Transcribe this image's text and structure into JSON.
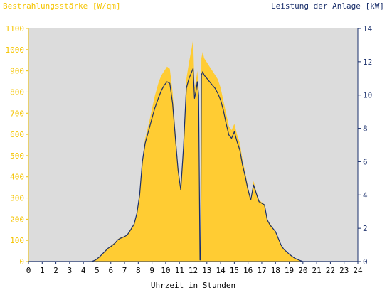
{
  "chart_data": {
    "type": "area",
    "left_axis_title": "Bestrahlungsstärke [W/qm]",
    "right_axis_title": "Leistung der Anlage [kW]",
    "xlabel": "Uhrzeit in Stunden",
    "xlim": [
      0,
      24
    ],
    "ylim_left": [
      0,
      1100
    ],
    "ylim_right": [
      0,
      14
    ],
    "x_ticks": [
      "0",
      "1",
      "2",
      "3",
      "4",
      "5",
      "6",
      "7",
      "8",
      "9",
      "10",
      "11",
      "12",
      "13",
      "14",
      "15",
      "16",
      "17",
      "18",
      "19",
      "20",
      "21",
      "22",
      "23",
      "24"
    ],
    "y_left_ticks": [
      "0",
      "100",
      "200",
      "300",
      "400",
      "500",
      "600",
      "700",
      "800",
      "900",
      "1000",
      "1100"
    ],
    "y_right_ticks": [
      "0",
      "2",
      "4",
      "6",
      "8",
      "10",
      "12",
      "14"
    ],
    "colors": {
      "plot_background": "#dcdcdc",
      "irradiance_fill": "#ffcc33",
      "power_line": "#1a2f6b",
      "left_axis": "#f5c400",
      "right_axis": "#1a2f6b",
      "axis_text": "#000000"
    },
    "series": [
      {
        "name": "Bestrahlungsstärke [W/qm]",
        "axis": "left",
        "style": "filled-area",
        "x": [
          0,
          4.6,
          4.9,
          5.2,
          5.5,
          5.8,
          6.0,
          6.3,
          6.5,
          6.7,
          7.0,
          7.2,
          7.4,
          7.7,
          7.9,
          8.1,
          8.3,
          8.5,
          8.8,
          9.0,
          9.2,
          9.5,
          9.7,
          9.9,
          10.1,
          10.3,
          10.5,
          10.7,
          10.9,
          11.1,
          11.3,
          11.5,
          11.7,
          11.9,
          12.0,
          12.1,
          12.2,
          12.3,
          12.4,
          12.5,
          12.55,
          12.6,
          12.7,
          12.8,
          13.0,
          13.2,
          13.4,
          13.6,
          13.8,
          14.0,
          14.2,
          14.4,
          14.6,
          14.8,
          15.0,
          15.2,
          15.4,
          15.6,
          15.8,
          16.0,
          16.2,
          16.4,
          16.6,
          16.8,
          17.0,
          17.2,
          17.4,
          17.6,
          17.8,
          18.0,
          18.2,
          18.4,
          18.6,
          18.8,
          19.0,
          19.2,
          19.4,
          19.6,
          19.8,
          20.0,
          20.2,
          24
        ],
        "values": [
          0,
          0,
          10,
          25,
          45,
          65,
          75,
          90,
          105,
          115,
          120,
          130,
          150,
          180,
          230,
          320,
          480,
          580,
          660,
          720,
          780,
          850,
          880,
          900,
          920,
          910,
          800,
          620,
          450,
          350,
          560,
          860,
          940,
          1010,
          1050,
          820,
          850,
          900,
          820,
          20,
          20,
          960,
          990,
          960,
          940,
          920,
          900,
          880,
          860,
          820,
          760,
          700,
          640,
          620,
          650,
          600,
          560,
          480,
          420,
          350,
          300,
          380,
          330,
          290,
          280,
          270,
          200,
          180,
          160,
          140,
          110,
          80,
          60,
          45,
          35,
          25,
          15,
          10,
          5,
          0,
          0,
          0
        ]
      },
      {
        "name": "Leistung der Anlage [kW]",
        "axis": "right",
        "style": "line",
        "x": [
          0,
          4.6,
          4.9,
          5.2,
          5.5,
          5.8,
          6.0,
          6.3,
          6.5,
          6.7,
          7.0,
          7.2,
          7.4,
          7.7,
          7.9,
          8.1,
          8.3,
          8.5,
          8.8,
          9.0,
          9.2,
          9.5,
          9.7,
          9.9,
          10.1,
          10.3,
          10.5,
          10.7,
          10.9,
          11.1,
          11.3,
          11.5,
          11.7,
          11.9,
          12.0,
          12.1,
          12.2,
          12.3,
          12.4,
          12.5,
          12.55,
          12.6,
          12.7,
          12.8,
          13.0,
          13.2,
          13.4,
          13.6,
          13.8,
          14.0,
          14.2,
          14.4,
          14.6,
          14.8,
          15.0,
          15.2,
          15.4,
          15.6,
          15.8,
          16.0,
          16.2,
          16.4,
          16.6,
          16.8,
          17.0,
          17.2,
          17.4,
          17.6,
          17.8,
          18.0,
          18.2,
          18.4,
          18.6,
          18.8,
          19.0,
          19.2,
          19.4,
          19.6,
          19.8,
          20.0,
          20.2,
          24
        ],
        "values": [
          0,
          0,
          0.1,
          0.3,
          0.55,
          0.8,
          0.9,
          1.1,
          1.3,
          1.4,
          1.5,
          1.6,
          1.85,
          2.25,
          2.9,
          4.0,
          6.0,
          7.1,
          8.0,
          8.6,
          9.2,
          9.9,
          10.3,
          10.6,
          10.8,
          10.7,
          9.5,
          7.5,
          5.5,
          4.3,
          6.9,
          10.4,
          11.0,
          11.4,
          11.6,
          9.8,
          10.2,
          10.8,
          10.0,
          0.1,
          0.1,
          11.2,
          11.4,
          11.2,
          11.0,
          10.8,
          10.6,
          10.4,
          10.1,
          9.7,
          9.1,
          8.3,
          7.6,
          7.4,
          7.8,
          7.2,
          6.7,
          5.8,
          5.1,
          4.3,
          3.7,
          4.6,
          4.1,
          3.6,
          3.5,
          3.4,
          2.5,
          2.2,
          2.0,
          1.8,
          1.4,
          1.0,
          0.75,
          0.6,
          0.45,
          0.32,
          0.2,
          0.13,
          0.06,
          0,
          0,
          0
        ]
      }
    ]
  }
}
